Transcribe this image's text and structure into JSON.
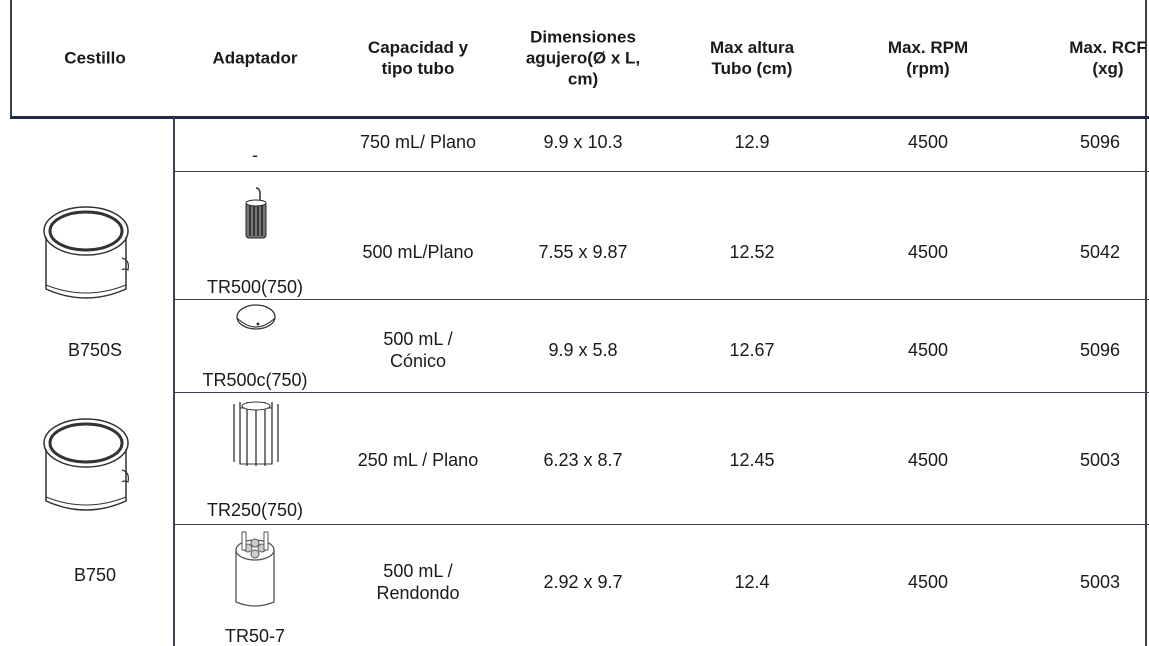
{
  "header": [
    "Cestillo",
    "Adaptador",
    [
      "Capacidad y",
      "tipo tubo"
    ],
    [
      "Dimensiones",
      "agujero(Ø x L,",
      "cm)"
    ],
    [
      "Max altura",
      "Tubo (cm)"
    ],
    [
      "Max. RPM",
      "(rpm)"
    ],
    [
      "Max. RCF",
      "(xg)"
    ]
  ],
  "baskets": [
    "B750S",
    "B750"
  ],
  "rows": [
    [
      "-",
      "750 mL/ Plano",
      "9.9 x 10.3",
      "12.9",
      "4500",
      "5096"
    ],
    [
      "TR500(750)",
      "500 mL/Plano",
      "7.55 x 9.87",
      "12.52",
      "4500",
      "5042"
    ],
    [
      "TR500c(750)",
      [
        "500 mL /",
        "Cónico"
      ],
      "9.9 x 5.8",
      "12.67",
      "4500",
      "5096"
    ],
    [
      "TR250(750)",
      "250 mL / Plano",
      "6.23 x 8.7",
      "12.45",
      "4500",
      "5003"
    ],
    [
      "TR50-7",
      [
        "500 mL /",
        "Rendondo"
      ],
      "2.92 x 9.7",
      "12.4",
      "4500",
      "5003"
    ]
  ]
}
